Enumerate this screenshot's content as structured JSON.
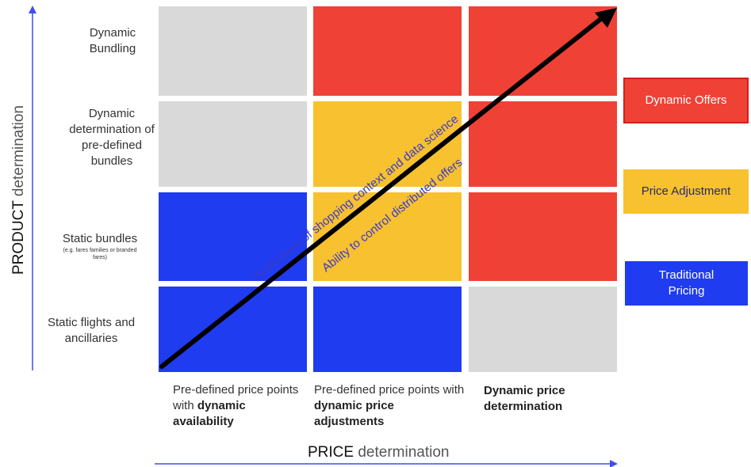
{
  "colors": {
    "grey": "#d9d9d9",
    "red": "#ef4136",
    "yellow": "#f7c12f",
    "blue": "#1f3cf0",
    "axis_blue": "#3f4fe8",
    "arrow": "#000000",
    "diagonal_text": "#3a3acb"
  },
  "y_axis": {
    "title_main": "PRODUCT",
    "title_rest": " determination",
    "rows": [
      {
        "label_lines": [
          "Dynamic",
          "Bundling"
        ]
      },
      {
        "label_lines": [
          "Dynamic",
          "determination of",
          "pre-defined",
          "bundles"
        ]
      },
      {
        "label_lines": [
          "Static bundles"
        ],
        "note_lines": [
          "(e.g. fares families or branded",
          "fares)"
        ]
      },
      {
        "label_lines": [
          "Static flights and",
          "ancillaries"
        ]
      }
    ]
  },
  "x_axis": {
    "title_main": "PRICE",
    "title_rest": " determination",
    "columns": [
      {
        "normal": "Pre-defined price points with ",
        "bold": "dynamic availability"
      },
      {
        "normal": "Pre-defined price points with ",
        "bold": "dynamic price adjustments"
      },
      {
        "normal": "",
        "bold": "Dynamic price determination"
      }
    ]
  },
  "grid": [
    [
      "grey",
      "red",
      "red"
    ],
    [
      "grey",
      "yellow",
      "red"
    ],
    [
      "blue",
      "yellow",
      "red"
    ],
    [
      "blue",
      "blue",
      "grey"
    ]
  ],
  "diagonal": {
    "line1": "Application of shopping context and data science",
    "line2": "Ability to control distributed offers"
  },
  "legend": [
    {
      "label": "Dynamic Offers",
      "color": "red",
      "bordered": true
    },
    {
      "label": "Price Adjustment",
      "color": "yellow",
      "bordered": false
    },
    {
      "label": "Traditional Pricing",
      "color": "blue",
      "bordered": false
    }
  ]
}
